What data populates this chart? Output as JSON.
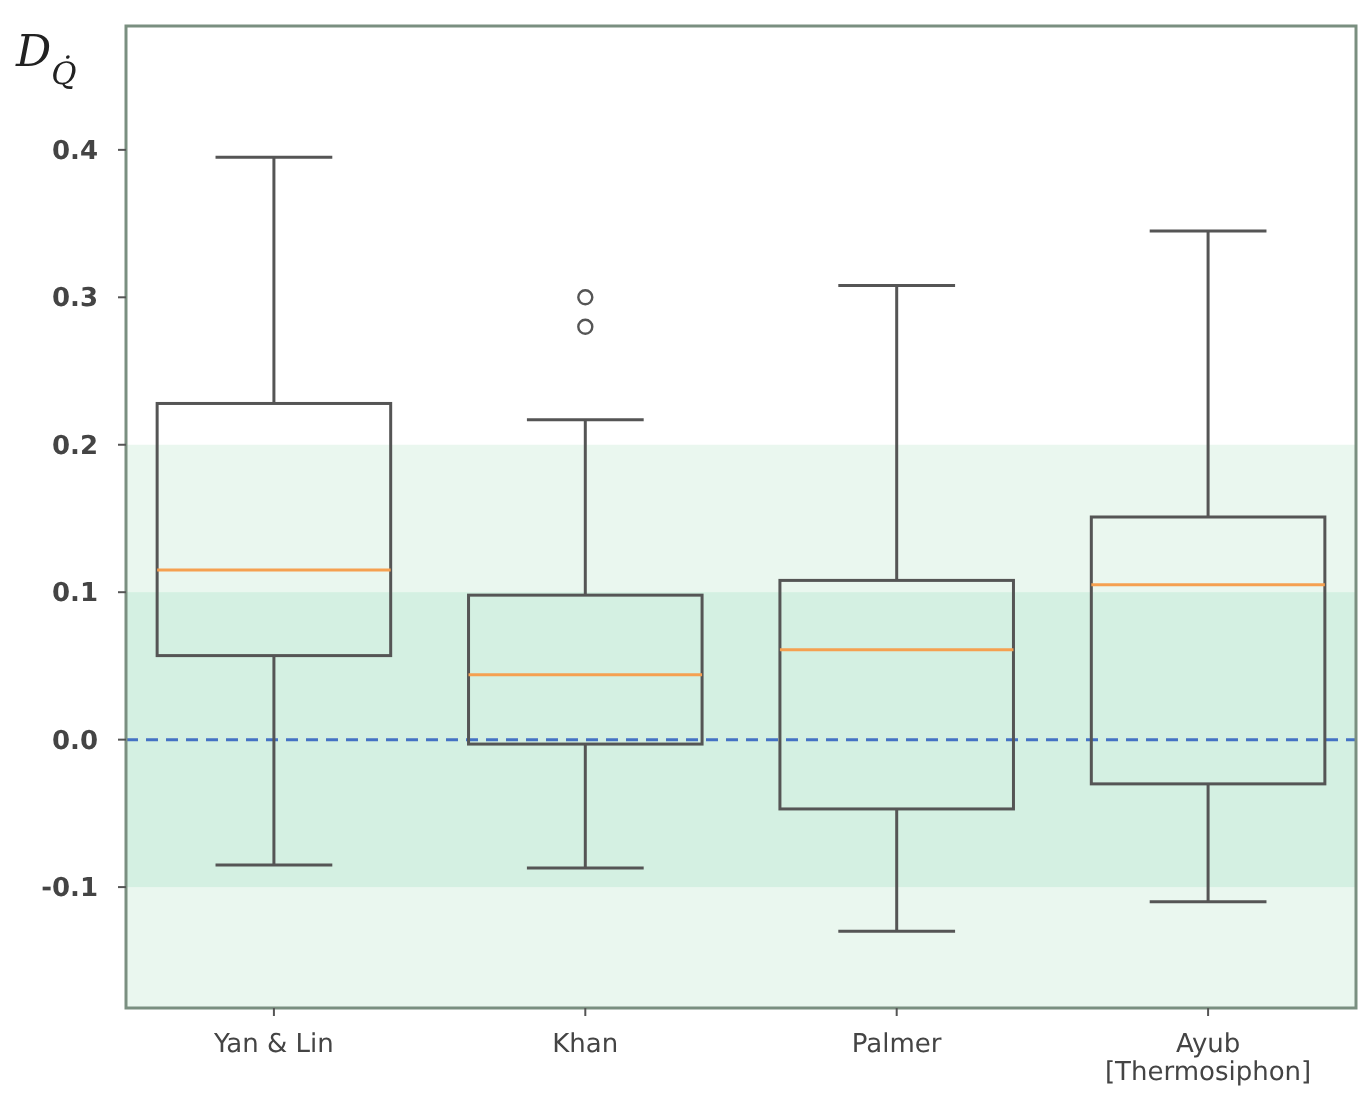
{
  "chart_data": {
    "type": "box",
    "ylabel": "D$_{Q̇}$",
    "categories": [
      "Yan & Lin",
      "Khan",
      "Palmer",
      "Ayub\n[Thermosiphon]"
    ],
    "boxes": [
      {
        "low": -0.085,
        "q1": 0.057,
        "median": 0.115,
        "q3": 0.228,
        "high": 0.395
      },
      {
        "low": -0.087,
        "q1": -0.003,
        "median": 0.044,
        "q3": 0.098,
        "high": 0.217,
        "outliers": [
          0.3,
          0.28
        ]
      },
      {
        "low": -0.13,
        "q1": -0.047,
        "median": 0.061,
        "q3": 0.108,
        "high": 0.308
      },
      {
        "low": -0.11,
        "q1": -0.03,
        "median": 0.105,
        "q3": 0.151,
        "high": 0.345
      }
    ],
    "ylim": [
      -0.182,
      0.484
    ],
    "yticks": [
      {
        "value": -0.1,
        "label": "-0.1"
      },
      {
        "value": 0,
        "label": "0.0"
      },
      {
        "value": 0.1,
        "label": "0.1"
      },
      {
        "value": 0.2,
        "label": "0.2"
      },
      {
        "value": 0.3,
        "label": "0.3"
      },
      {
        "value": 0.4,
        "label": "0.4"
      }
    ],
    "bands": [
      {
        "axis": "y",
        "from": -0.2,
        "to": 0.2,
        "color": "#eaf7ef"
      },
      {
        "axis": "y",
        "from": -0.1,
        "to": 0.1,
        "color": "#d4f0e2"
      }
    ],
    "ref_lines": [
      {
        "axis": "y",
        "value": 0,
        "color": "#4472c4",
        "line_style": "dashed"
      }
    ],
    "grid": false
  }
}
